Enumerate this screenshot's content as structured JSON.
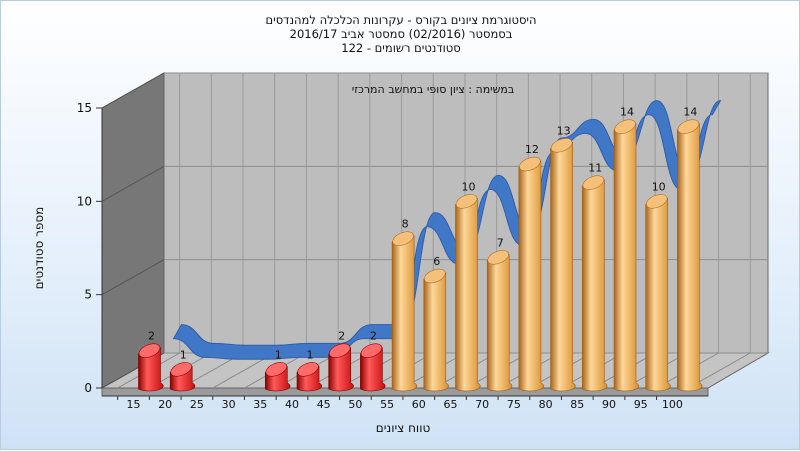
{
  "titles": {
    "line1": "היסטוגרמת ציונים בקורס - עקרונות הכלכלה למהנדסים",
    "line2": "בסמסטר  (02/2016)  סמסטר אביב 2016/17",
    "line3": "סטודנטים רשומים - 122"
  },
  "chart_data": {
    "type": "bar",
    "title": "היסטוגרמת ציונים בקורס - עקרונות הכלכלה למהנדסים",
    "annotation": "במשימה : ציון סופי במחשב המרכזי",
    "xlabel": "טווח ציונים",
    "ylabel": "מספר סטודנטים",
    "categories": [
      "15",
      "20",
      "25",
      "30",
      "35",
      "40",
      "45",
      "50",
      "55",
      "60",
      "65",
      "70",
      "75",
      "80",
      "85",
      "90",
      "95",
      "100"
    ],
    "values": [
      2,
      1,
      0,
      0,
      1,
      1,
      2,
      2,
      8,
      6,
      10,
      7,
      12,
      13,
      11,
      14,
      10,
      14
    ],
    "ylim": [
      0,
      15
    ],
    "yticks": [
      0,
      5,
      10,
      15
    ],
    "grid": true,
    "bar_colors": {
      "failing": "#e02020",
      "passing": "#e8a640"
    },
    "trend_color": "#3a75c8",
    "wall_color": "#bdbdbd",
    "side_wall_color": "#777777"
  }
}
